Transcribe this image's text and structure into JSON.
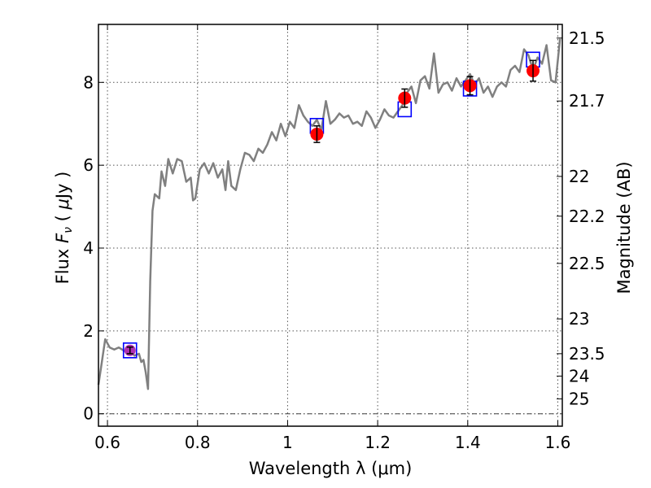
{
  "chart_data": {
    "type": "line",
    "xlabel": "Wavelength  λ (μm)",
    "ylabel_left": "Flux  F_ν  ( μJy )",
    "ylabel_right": "Magnitude (AB)",
    "xlim": [
      0.58,
      1.61
    ],
    "ylim": [
      -0.3,
      9.4
    ],
    "grid": true,
    "x_ticks": [
      {
        "value": 0.6,
        "label": "0.6"
      },
      {
        "value": 0.8,
        "label": "0.8"
      },
      {
        "value": 1.0,
        "label": "1"
      },
      {
        "value": 1.2,
        "label": "1.2"
      },
      {
        "value": 1.4,
        "label": "1.4"
      },
      {
        "value": 1.6,
        "label": "1.6"
      }
    ],
    "y_ticks": [
      {
        "value": 0,
        "label": "0"
      },
      {
        "value": 2,
        "label": "2"
      },
      {
        "value": 4,
        "label": "4"
      },
      {
        "value": 6,
        "label": "6"
      },
      {
        "value": 8,
        "label": "8"
      }
    ],
    "right_ticks": [
      {
        "flux": 9.07,
        "label": "21.5"
      },
      {
        "flux": 7.55,
        "label": "21.7"
      },
      {
        "flux": 5.73,
        "label": "22"
      },
      {
        "flux": 4.77,
        "label": "22.2"
      },
      {
        "flux": 3.63,
        "label": "22.5"
      },
      {
        "flux": 2.29,
        "label": "23"
      },
      {
        "flux": 1.45,
        "label": "23.5"
      },
      {
        "flux": 0.91,
        "label": "24"
      },
      {
        "flux": 0.36,
        "label": "25"
      }
    ],
    "model_spectrum": {
      "color": "#808080",
      "x": [
        0.58,
        0.595,
        0.605,
        0.615,
        0.625,
        0.64,
        0.65,
        0.66,
        0.67,
        0.675,
        0.68,
        0.685,
        0.69,
        0.695,
        0.7,
        0.705,
        0.715,
        0.72,
        0.728,
        0.735,
        0.745,
        0.755,
        0.765,
        0.775,
        0.785,
        0.79,
        0.795,
        0.805,
        0.815,
        0.825,
        0.835,
        0.845,
        0.855,
        0.862,
        0.868,
        0.875,
        0.885,
        0.895,
        0.905,
        0.915,
        0.925,
        0.935,
        0.945,
        0.955,
        0.965,
        0.975,
        0.985,
        0.995,
        1.005,
        1.015,
        1.025,
        1.035,
        1.045,
        1.055,
        1.065,
        1.075,
        1.085,
        1.095,
        1.105,
        1.115,
        1.125,
        1.135,
        1.145,
        1.155,
        1.165,
        1.175,
        1.185,
        1.195,
        1.205,
        1.215,
        1.225,
        1.235,
        1.245,
        1.255,
        1.265,
        1.275,
        1.285,
        1.295,
        1.305,
        1.315,
        1.325,
        1.335,
        1.345,
        1.355,
        1.365,
        1.375,
        1.385,
        1.395,
        1.405,
        1.415,
        1.425,
        1.435,
        1.445,
        1.455,
        1.465,
        1.475,
        1.485,
        1.495,
        1.505,
        1.515,
        1.525,
        1.535,
        1.545,
        1.555,
        1.565,
        1.575,
        1.585,
        1.595,
        1.605
      ],
      "y": [
        0.7,
        1.8,
        1.6,
        1.55,
        1.6,
        1.5,
        1.55,
        1.4,
        1.45,
        1.25,
        1.3,
        1.0,
        0.6,
        3.2,
        4.9,
        5.3,
        5.2,
        5.85,
        5.5,
        6.15,
        5.8,
        6.15,
        6.1,
        5.6,
        5.7,
        5.15,
        5.2,
        5.9,
        6.05,
        5.8,
        6.05,
        5.7,
        5.9,
        5.4,
        6.1,
        5.5,
        5.4,
        5.9,
        6.3,
        6.25,
        6.1,
        6.4,
        6.3,
        6.5,
        6.8,
        6.6,
        7.0,
        6.7,
        7.05,
        6.9,
        7.45,
        7.2,
        7.05,
        6.95,
        7.1,
        6.85,
        7.55,
        7.0,
        7.1,
        7.25,
        7.15,
        7.2,
        7.0,
        7.05,
        6.95,
        7.3,
        7.15,
        6.9,
        7.1,
        7.35,
        7.2,
        7.15,
        7.3,
        7.45,
        7.75,
        7.9,
        7.5,
        8.05,
        8.15,
        7.85,
        8.7,
        7.75,
        7.95,
        8.0,
        7.8,
        8.1,
        7.9,
        8.05,
        8.2,
        7.95,
        8.1,
        7.75,
        7.9,
        7.65,
        7.9,
        8.0,
        7.9,
        8.3,
        8.4,
        8.25,
        8.8,
        8.65,
        8.3,
        8.6,
        8.45,
        8.9,
        8.05,
        8.0,
        9.05
      ]
    },
    "observed_points": {
      "color": "#ff0000",
      "x": [
        0.65,
        1.065,
        1.26,
        1.405,
        1.545
      ],
      "y": [
        1.53,
        6.75,
        7.62,
        7.92,
        8.28
      ],
      "err": [
        0.08,
        0.2,
        0.22,
        0.22,
        0.25
      ]
    },
    "model_boxes": {
      "color": "#0000ff",
      "x": [
        0.65,
        1.065,
        1.26,
        1.405,
        1.545
      ],
      "y": [
        1.53,
        6.95,
        7.35,
        7.85,
        8.55
      ]
    },
    "highlight_point": {
      "color": "#b030b0",
      "x": 0.65,
      "y": 1.53
    }
  }
}
